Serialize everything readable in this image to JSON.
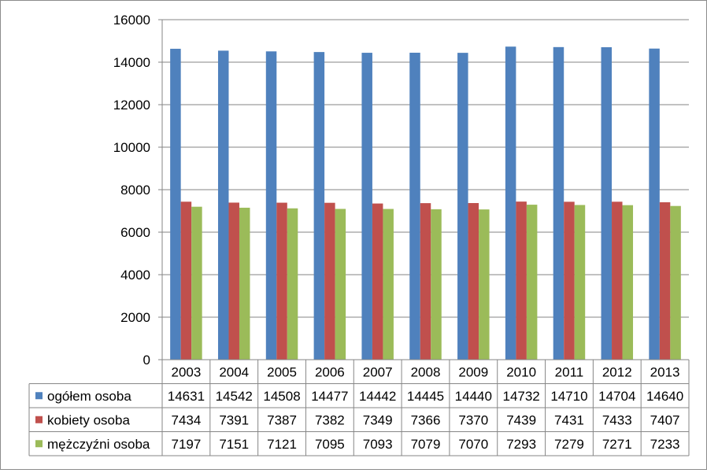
{
  "chart_data": {
    "type": "bar",
    "categories": [
      "2003",
      "2004",
      "2005",
      "2006",
      "2007",
      "2008",
      "2009",
      "2010",
      "2011",
      "2012",
      "2013"
    ],
    "series": [
      {
        "name": "ogółem osoba",
        "color": "#4f81bd",
        "values": [
          14631,
          14542,
          14508,
          14477,
          14442,
          14445,
          14440,
          14732,
          14710,
          14704,
          14640
        ]
      },
      {
        "name": "kobiety osoba",
        "color": "#c0504d",
        "values": [
          7434,
          7391,
          7387,
          7382,
          7349,
          7366,
          7370,
          7439,
          7431,
          7433,
          7407
        ]
      },
      {
        "name": "mężczyźni osoba",
        "color": "#9bbb59",
        "values": [
          7197,
          7151,
          7121,
          7095,
          7093,
          7079,
          7070,
          7293,
          7279,
          7271,
          7233
        ]
      }
    ],
    "yticks": [
      "0",
      "2000",
      "4000",
      "6000",
      "8000",
      "10000",
      "12000",
      "14000",
      "16000"
    ],
    "ylim": [
      0,
      16000
    ],
    "grid": true,
    "legend": "data table below the chart"
  }
}
